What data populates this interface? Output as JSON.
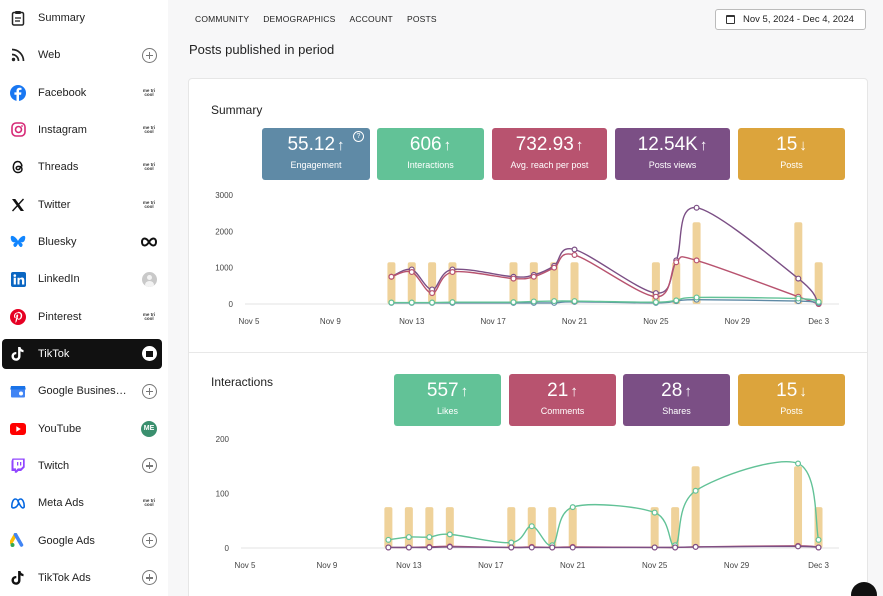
{
  "sidebar": {
    "items": [
      {
        "label": "Summary",
        "icon": "clipboard-icon",
        "right": "none",
        "active": false
      },
      {
        "label": "Web",
        "icon": "rss-icon",
        "right": "plus",
        "active": false
      },
      {
        "label": "Facebook",
        "icon": "facebook-icon",
        "right": "logo",
        "active": false
      },
      {
        "label": "Instagram",
        "icon": "instagram-icon",
        "right": "logo",
        "active": false
      },
      {
        "label": "Threads",
        "icon": "threads-icon",
        "right": "logo",
        "active": false
      },
      {
        "label": "Twitter",
        "icon": "x-icon",
        "right": "logo",
        "active": false
      },
      {
        "label": "Bluesky",
        "icon": "butterfly-icon",
        "right": "infinity",
        "active": false
      },
      {
        "label": "LinkedIn",
        "icon": "linkedin-icon",
        "right": "avatar",
        "active": false
      },
      {
        "label": "Pinterest",
        "icon": "pinterest-icon",
        "right": "logo",
        "active": false
      },
      {
        "label": "TikTok",
        "icon": "tiktok-icon",
        "right": "avatar-white",
        "active": true
      },
      {
        "label": "Google Business ...",
        "icon": "google-business-icon",
        "right": "plus",
        "active": false
      },
      {
        "label": "YouTube",
        "icon": "youtube-icon",
        "right": "me",
        "active": false
      },
      {
        "label": "Twitch",
        "icon": "twitch-icon",
        "right": "plus",
        "active": false
      },
      {
        "label": "Meta Ads",
        "icon": "meta-icon",
        "right": "logo",
        "active": false
      },
      {
        "label": "Google Ads",
        "icon": "google-ads-icon",
        "right": "plus",
        "active": false
      },
      {
        "label": "TikTok Ads",
        "icon": "tiktok-icon",
        "right": "plus",
        "active": false
      }
    ],
    "logo_text": "me tri cool",
    "me_initials": "ME"
  },
  "nav": {
    "tabs": [
      "COMMUNITY",
      "DEMOGRAPHICS",
      "ACCOUNT",
      "POSTS"
    ],
    "date_range": "Nov 5, 2024 - Dec 4, 2024"
  },
  "page": {
    "title": "Posts published in period"
  },
  "summary": {
    "title": "Summary",
    "stats": [
      {
        "value": "55.12",
        "arrow": "↑",
        "label": "Engagement",
        "color": "#5f8aa6",
        "help": "?"
      },
      {
        "value": "606",
        "arrow": "↑",
        "label": "Interactions",
        "color": "#62c297"
      },
      {
        "value": "732.93",
        "arrow": "↑",
        "label": "Avg. reach per post",
        "color": "#b8536f"
      },
      {
        "value": "12.54K",
        "arrow": "↑",
        "label": "Posts views",
        "color": "#7b4f85"
      },
      {
        "value": "15",
        "arrow": "↓",
        "label": "Posts",
        "color": "#dca43c"
      }
    ]
  },
  "interactions": {
    "title": "Interactions",
    "stats": [
      {
        "value": "557",
        "arrow": "↑",
        "label": "Likes",
        "color": "#62c297"
      },
      {
        "value": "21",
        "arrow": "↑",
        "label": "Comments",
        "color": "#b8536f"
      },
      {
        "value": "28",
        "arrow": "↑",
        "label": "Shares",
        "color": "#7b4f85"
      },
      {
        "value": "15",
        "arrow": "↓",
        "label": "Posts",
        "color": "#dca43c"
      }
    ]
  },
  "chart_data": [
    {
      "type": "line",
      "title": "Summary",
      "x_ticks": [
        "Nov 5",
        "Nov 9",
        "Nov 13",
        "Nov 17",
        "Nov 21",
        "Nov 25",
        "Nov 29",
        "Dec 3"
      ],
      "y_ticks": [
        0,
        1000,
        2000,
        3000
      ],
      "ylim": [
        0,
        3000
      ],
      "xlim": [
        0,
        29
      ],
      "bar_color": "#efd29a",
      "bars": {
        "x": [
          7,
          8,
          9,
          10,
          13,
          14,
          15,
          16,
          20,
          21,
          22,
          27,
          28
        ],
        "values": [
          1150,
          1150,
          1150,
          1150,
          1150,
          1150,
          1150,
          1150,
          1150,
          1150,
          2250,
          2250,
          1150
        ]
      },
      "series": [
        {
          "name": "Views",
          "color": "#7b4f85",
          "x": [
            7,
            8,
            9,
            10,
            13,
            14,
            15,
            16,
            20,
            21,
            22,
            27,
            28
          ],
          "values": [
            750,
            950,
            400,
            950,
            750,
            800,
            1050,
            1500,
            300,
            1200,
            2650,
            700,
            0
          ]
        },
        {
          "name": "Reach",
          "color": "#b8536f",
          "x": [
            7,
            8,
            9,
            10,
            13,
            14,
            15,
            16,
            20,
            21,
            22,
            27,
            28
          ],
          "values": [
            750,
            880,
            300,
            880,
            700,
            750,
            1000,
            1350,
            200,
            1150,
            1200,
            200,
            0
          ]
        },
        {
          "name": "Engagement",
          "color": "#5f8aa6",
          "x": [
            7,
            8,
            9,
            10,
            13,
            14,
            15,
            16,
            20,
            21,
            22,
            27,
            28
          ],
          "values": [
            30,
            30,
            30,
            30,
            30,
            30,
            30,
            60,
            30,
            80,
            120,
            80,
            30
          ]
        },
        {
          "name": "Interactions",
          "color": "#62c297",
          "x": [
            7,
            8,
            9,
            10,
            13,
            14,
            15,
            16,
            20,
            21,
            22,
            27,
            28
          ],
          "values": [
            40,
            40,
            40,
            50,
            50,
            70,
            80,
            80,
            50,
            100,
            180,
            150,
            60
          ]
        }
      ]
    },
    {
      "type": "line",
      "title": "Interactions",
      "x_ticks": [
        "Nov 5",
        "Nov 9",
        "Nov 13",
        "Nov 17",
        "Nov 21",
        "Nov 25",
        "Nov 29",
        "Dec 3"
      ],
      "y_ticks": [
        0,
        100,
        200
      ],
      "ylim": [
        0,
        200
      ],
      "xlim": [
        0,
        29
      ],
      "bar_color": "#efd29a",
      "bars": {
        "x": [
          7,
          8,
          9,
          10,
          13,
          14,
          15,
          16,
          20,
          21,
          22,
          27,
          28
        ],
        "values": [
          75,
          75,
          75,
          75,
          75,
          75,
          75,
          75,
          75,
          75,
          150,
          150,
          75
        ]
      },
      "series": [
        {
          "name": "Likes",
          "color": "#62c297",
          "x": [
            7,
            8,
            9,
            10,
            13,
            14,
            15,
            16,
            20,
            21,
            22,
            27,
            28
          ],
          "values": [
            15,
            20,
            20,
            25,
            10,
            40,
            5,
            75,
            65,
            5,
            105,
            155,
            15
          ]
        },
        {
          "name": "Comments",
          "color": "#b8536f",
          "x": [
            7,
            8,
            9,
            10,
            13,
            14,
            15,
            16,
            20,
            21,
            22,
            27,
            28
          ],
          "values": [
            1,
            1,
            2,
            3,
            1,
            2,
            1,
            2,
            1,
            1,
            2,
            4,
            1
          ]
        },
        {
          "name": "Shares",
          "color": "#7b4f85",
          "x": [
            7,
            8,
            9,
            10,
            13,
            14,
            15,
            16,
            20,
            21,
            22,
            27,
            28
          ],
          "values": [
            1,
            1,
            1,
            2,
            1,
            1,
            1,
            1,
            1,
            1,
            2,
            3,
            1
          ]
        }
      ]
    }
  ]
}
